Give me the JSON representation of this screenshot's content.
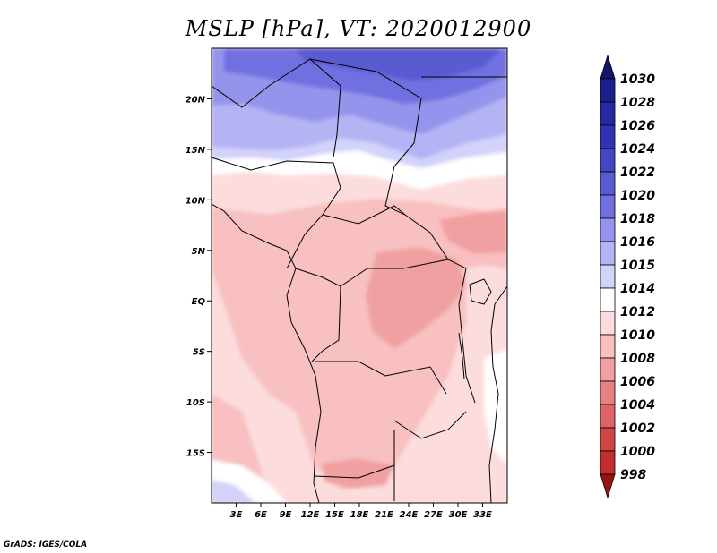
{
  "title": "MSLP [hPa], VT: 2020012900",
  "credit": "GrADS: IGES/COLA",
  "map": {
    "lon_range": [
      0,
      36
    ],
    "lat_range": [
      -20,
      25
    ],
    "lon_ticks": [
      {
        "value": 3,
        "label": "3E"
      },
      {
        "value": 6,
        "label": "6E"
      },
      {
        "value": 9,
        "label": "9E"
      },
      {
        "value": 12,
        "label": "12E"
      },
      {
        "value": 15,
        "label": "15E"
      },
      {
        "value": 18,
        "label": "18E"
      },
      {
        "value": 21,
        "label": "21E"
      },
      {
        "value": 24,
        "label": "24E"
      },
      {
        "value": 27,
        "label": "27E"
      },
      {
        "value": 30,
        "label": "30E"
      },
      {
        "value": 33,
        "label": "33E"
      }
    ],
    "lat_ticks": [
      {
        "value": 20,
        "label": "20N"
      },
      {
        "value": 15,
        "label": "15N"
      },
      {
        "value": 10,
        "label": "10N"
      },
      {
        "value": 5,
        "label": "5N"
      },
      {
        "value": 0,
        "label": "EQ"
      },
      {
        "value": -5,
        "label": "5S"
      },
      {
        "value": -10,
        "label": "10S"
      },
      {
        "value": -15,
        "label": "15S"
      }
    ]
  },
  "colorbar": {
    "levels": [
      {
        "label": "1030",
        "color": "#1e1e8c"
      },
      {
        "label": "1028",
        "color": "#2828a0"
      },
      {
        "label": "1026",
        "color": "#3232b4"
      },
      {
        "label": "1024",
        "color": "#4646c3"
      },
      {
        "label": "1022",
        "color": "#5a5ad2"
      },
      {
        "label": "1020",
        "color": "#7070e0"
      },
      {
        "label": "1018",
        "color": "#9494ec"
      },
      {
        "label": "1016",
        "color": "#b4b4f4"
      },
      {
        "label": "1015",
        "color": "#d2d2fa"
      },
      {
        "label": "1014",
        "color": "#ffffff"
      },
      {
        "label": "1012",
        "color": "#fcdcdc"
      },
      {
        "label": "1010",
        "color": "#f8c0c0"
      },
      {
        "label": "1008",
        "color": "#f0a0a0"
      },
      {
        "label": "1006",
        "color": "#e68282"
      },
      {
        "label": "1004",
        "color": "#dc6464"
      },
      {
        "label": "1002",
        "color": "#d04646"
      },
      {
        "label": "1000",
        "color": "#c03030"
      },
      {
        "label": "998",
        "color": "#a82020"
      }
    ],
    "top_arrow_color": "#14146e",
    "bottom_arrow_color": "#961414"
  }
}
